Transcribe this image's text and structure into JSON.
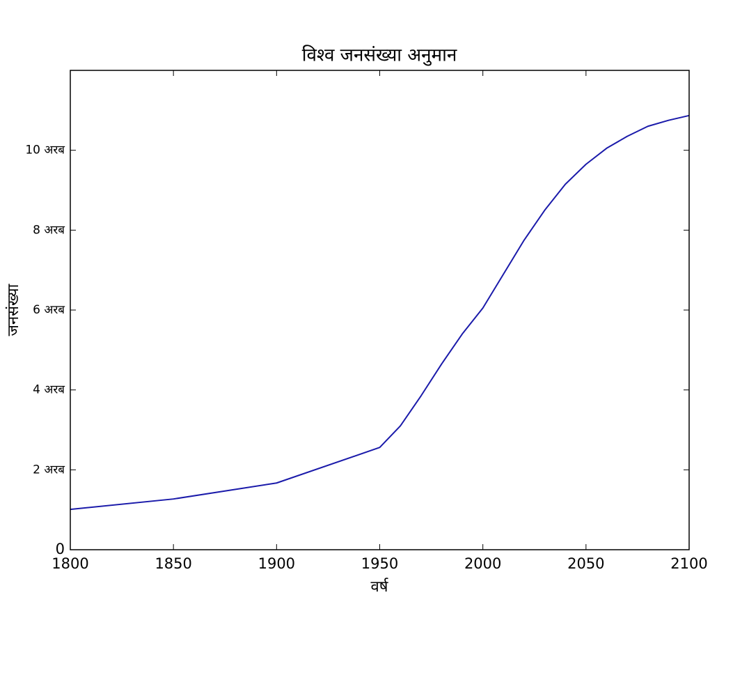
{
  "chart_data": {
    "type": "line",
    "title": "विश्व जनसंख्या अनुमान",
    "x_label": "वर्ष",
    "y_label": "जनसंख्या",
    "x": [
      1800,
      1850,
      1900,
      1950,
      1960,
      1970,
      1980,
      1990,
      2000,
      2010,
      2020,
      2030,
      2040,
      2050,
      2060,
      2070,
      2080,
      2090,
      2100
    ],
    "series": [
      {
        "color": "#1a1aaa",
        "values": [
          1.01,
          1.27,
          1.67,
          2.56,
          3.1,
          3.85,
          4.65,
          5.4,
          6.05,
          6.9,
          7.75,
          8.5,
          9.15,
          9.65,
          10.05,
          10.35,
          10.6,
          10.75,
          10.87
        ]
      }
    ],
    "xlim": [
      1800,
      2100
    ],
    "xticks": [
      1800,
      1850,
      1900,
      1950,
      2000,
      2050,
      2100
    ],
    "ylim": [
      0,
      12
    ],
    "yticks": [
      0,
      {
        "value": 2,
        "label": "2 अरब"
      },
      {
        "value": 4,
        "label": "4 अरब"
      },
      {
        "value": 6,
        "label": "6 अरब"
      },
      {
        "value": 8,
        "label": "8 अरब"
      },
      {
        "value": 10,
        "label": "10 अरब"
      }
    ],
    "grid": false
  }
}
